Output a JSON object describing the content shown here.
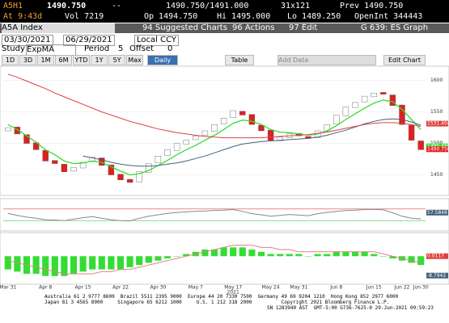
{
  "header": {
    "row1": [
      "A5H1",
      "1490.750",
      "--",
      "1490.750/1491.000",
      "31x121",
      "Prev 1490.750"
    ],
    "row2": [
      "At 9:43d",
      "Vol 7219",
      "Op 1494.750",
      "Hi 1495.000",
      "Lo 1489.250",
      "OpenInt 344443"
    ]
  },
  "toolbar": {
    "security": "A5A Index",
    "suggested": "94 Suggested Charts",
    "actions": "96 Actions",
    "edit": "97 Edit",
    "graph": "G 639: ES Graph"
  },
  "range": {
    "start": "03/30/2021",
    "end": "06/29/2021",
    "currency": "Local CCY"
  },
  "study": {
    "label": "Study",
    "name": "ExpMA",
    "period_label": "Period",
    "period": "5",
    "offset_label": "Offset",
    "offset": "0"
  },
  "buttons": [
    "1D",
    "3D",
    "1M",
    "6M",
    "YTD",
    "1Y",
    "5Y",
    "Max"
  ],
  "frequency": "Daily",
  "table": "Table",
  "add_data": "Add Data",
  "edit_chart": "Edit Chart",
  "chart_data": [
    {
      "type": "candlestick",
      "categories": [
        "Mar 31",
        null,
        null,
        null,
        "Apr 8",
        null,
        null,
        null,
        "Apr 15",
        null,
        null,
        null,
        "Apr 22",
        null,
        null,
        null,
        "Apr 30",
        null,
        null,
        null,
        "May 7",
        null,
        null,
        null,
        "May 17",
        null,
        null,
        null,
        "May 24",
        null,
        null,
        "May 31",
        null,
        null,
        null,
        "Jun 8",
        null,
        null,
        null,
        "Jun 15",
        null,
        null,
        "Jun 22",
        null,
        "Jun 30"
      ],
      "year": "2021",
      "open": [
        1520,
        1526,
        1514,
        1501,
        1489,
        1473,
        1467,
        1456,
        1461,
        1471,
        1477,
        1466,
        1451,
        1443,
        1439,
        1454,
        1469,
        1481,
        1489,
        1499,
        1506,
        1513,
        1519,
        1531,
        1541,
        1551,
        1546,
        1529,
        1521,
        1504,
        1509,
        1516,
        1511,
        1509,
        1519,
        1531,
        1544,
        1557,
        1566,
        1574,
        1581,
        1577,
        1561,
        1529,
        1504
      ],
      "close": [
        1525,
        1515,
        1500,
        1490,
        1472,
        1468,
        1455,
        1462,
        1470,
        1478,
        1465,
        1450,
        1442,
        1438,
        1455,
        1468,
        1480,
        1490,
        1500,
        1505,
        1512,
        1520,
        1530,
        1540,
        1552,
        1545,
        1530,
        1520,
        1505,
        1510,
        1515,
        1512,
        1508,
        1520,
        1530,
        1545,
        1558,
        1565,
        1575,
        1580,
        1578,
        1560,
        1530,
        1505,
        1490
      ],
      "up_color": "#ffffff",
      "down_color": "#e02020",
      "series": [
        {
          "name": "ExpMA",
          "color": "#33dd33",
          "values": [
            1530,
            1522,
            1512,
            1502,
            1490,
            1482,
            1472,
            1468,
            1469,
            1472,
            1470,
            1463,
            1456,
            1450,
            1452,
            1457,
            1465,
            1473,
            1482,
            1490,
            1497,
            1505,
            1513,
            1522,
            1532,
            1537,
            1535,
            1530,
            1522,
            1518,
            1517,
            1515,
            1513,
            1515,
            1520,
            1528,
            1538,
            1547,
            1556,
            1564,
            1569,
            1566,
            1554,
            1538,
            1522
          ]
        },
        {
          "name": "MA 20",
          "color": "#44607a",
          "values": [
            null,
            null,
            null,
            null,
            null,
            null,
            null,
            null,
            1480,
            1477,
            1474,
            1470,
            1467,
            1465,
            1464,
            1464,
            1465,
            1467,
            1469,
            1472,
            1476,
            1480,
            1485,
            1490,
            1495,
            1499,
            1501,
            1503,
            1504,
            1505,
            1506,
            1507,
            1508,
            1510,
            1513,
            1517,
            1521,
            1526,
            1531,
            1535,
            1538,
            1539,
            1538,
            1534,
            1529
          ]
        },
        {
          "name": "MA 50",
          "color": "#e04040",
          "values": [
            1610,
            1605,
            1599,
            1593,
            1587,
            1580,
            1574,
            1568,
            1562,
            1556,
            1550,
            1545,
            1540,
            1535,
            1531,
            1527,
            1523,
            1520,
            1517,
            1515,
            1513,
            1511,
            1510,
            1509,
            1509,
            1509,
            1509,
            1509,
            1510,
            1511,
            1512,
            1513,
            1514,
            1516,
            1518,
            1521,
            1524,
            1527,
            1530,
            1532,
            1533,
            1533,
            1532,
            1530,
            1527
          ]
        }
      ],
      "markers": [
        {
          "value": 1531.404,
          "label": "1531.404",
          "color": "#e04040"
        },
        {
          "value": 1495.46,
          "label": "1495.460",
          "color": "#33dd33"
        },
        {
          "value": 1490.75,
          "label": "1490.750",
          "color": "#e02020"
        }
      ],
      "ylim": [
        1420,
        1620
      ],
      "yticks": [
        1600,
        1550,
        1500,
        1450
      ],
      "grid": true
    },
    {
      "type": "line",
      "series": [
        {
          "name": "RSI",
          "color": "#888888",
          "values": [
            55,
            48,
            42,
            38,
            33,
            32,
            30,
            35,
            40,
            44,
            38,
            33,
            30,
            29,
            38,
            45,
            50,
            55,
            58,
            60,
            62,
            63,
            65,
            66,
            68,
            62,
            54,
            50,
            45,
            48,
            51,
            49,
            47,
            54,
            58,
            62,
            65,
            66,
            68,
            69,
            67,
            57,
            45,
            38,
            36
          ]
        }
      ],
      "levels": [
        {
          "value": 70,
          "color": "#e04040"
        },
        {
          "value": 30,
          "color": "#33cc33"
        }
      ],
      "markers": [
        {
          "value": 57.5848,
          "label": "57.5848",
          "color": "#44607a"
        }
      ],
      "ylim": [
        0,
        100
      ]
    },
    {
      "type": "histogram",
      "values": [
        -6,
        -7,
        -8,
        -8,
        -9,
        -9,
        -9,
        -8,
        -7,
        -6,
        -6,
        -6,
        -6,
        -5,
        -4,
        -3,
        -2,
        -1,
        0,
        1,
        2,
        3,
        3,
        4,
        4,
        4,
        3,
        2,
        1,
        1,
        1,
        1,
        0,
        1,
        1,
        2,
        2,
        2,
        2,
        1,
        0,
        -1,
        -2,
        -3,
        -4
      ],
      "color": "#33dd33",
      "series": [
        {
          "name": "Signal",
          "color": "#e08080",
          "values": [
            -2,
            -3,
            -4,
            -5,
            -6,
            -7,
            -8,
            -8,
            -8,
            -8,
            -7,
            -7,
            -6,
            -6,
            -5,
            -4,
            -3,
            -2,
            -1,
            0,
            1,
            2,
            3,
            4,
            5,
            5,
            5,
            4,
            4,
            3,
            3,
            2,
            2,
            2,
            2,
            2,
            2,
            2,
            2,
            2,
            1,
            0,
            -1,
            -2,
            -3
          ]
        }
      ],
      "markers": [
        {
          "value": 0.0117,
          "label": "0.0117",
          "color": "#e04040"
        },
        {
          "value": -8.7942,
          "label": "-8.7942",
          "color": "#44607a"
        }
      ],
      "ylim": [
        -12,
        10
      ]
    }
  ],
  "footer": [
    "Australia 61 2 9777 8600  Brazil 5511 2395 9000  Europe 44 20 7330 7500  Germany 49 69 9204 1210  Hong Kong 852 2977 6000",
    "Japan 81 3 4565 8900     Singapore 65 6212 1000     U.S. 1 212 318 2000          Copyright 2021 Bloomberg Finance L.P.",
    "SN 1283940 AST  GMT-5:00 G736-7625-0 29-Jun-2021 09:59:23"
  ]
}
